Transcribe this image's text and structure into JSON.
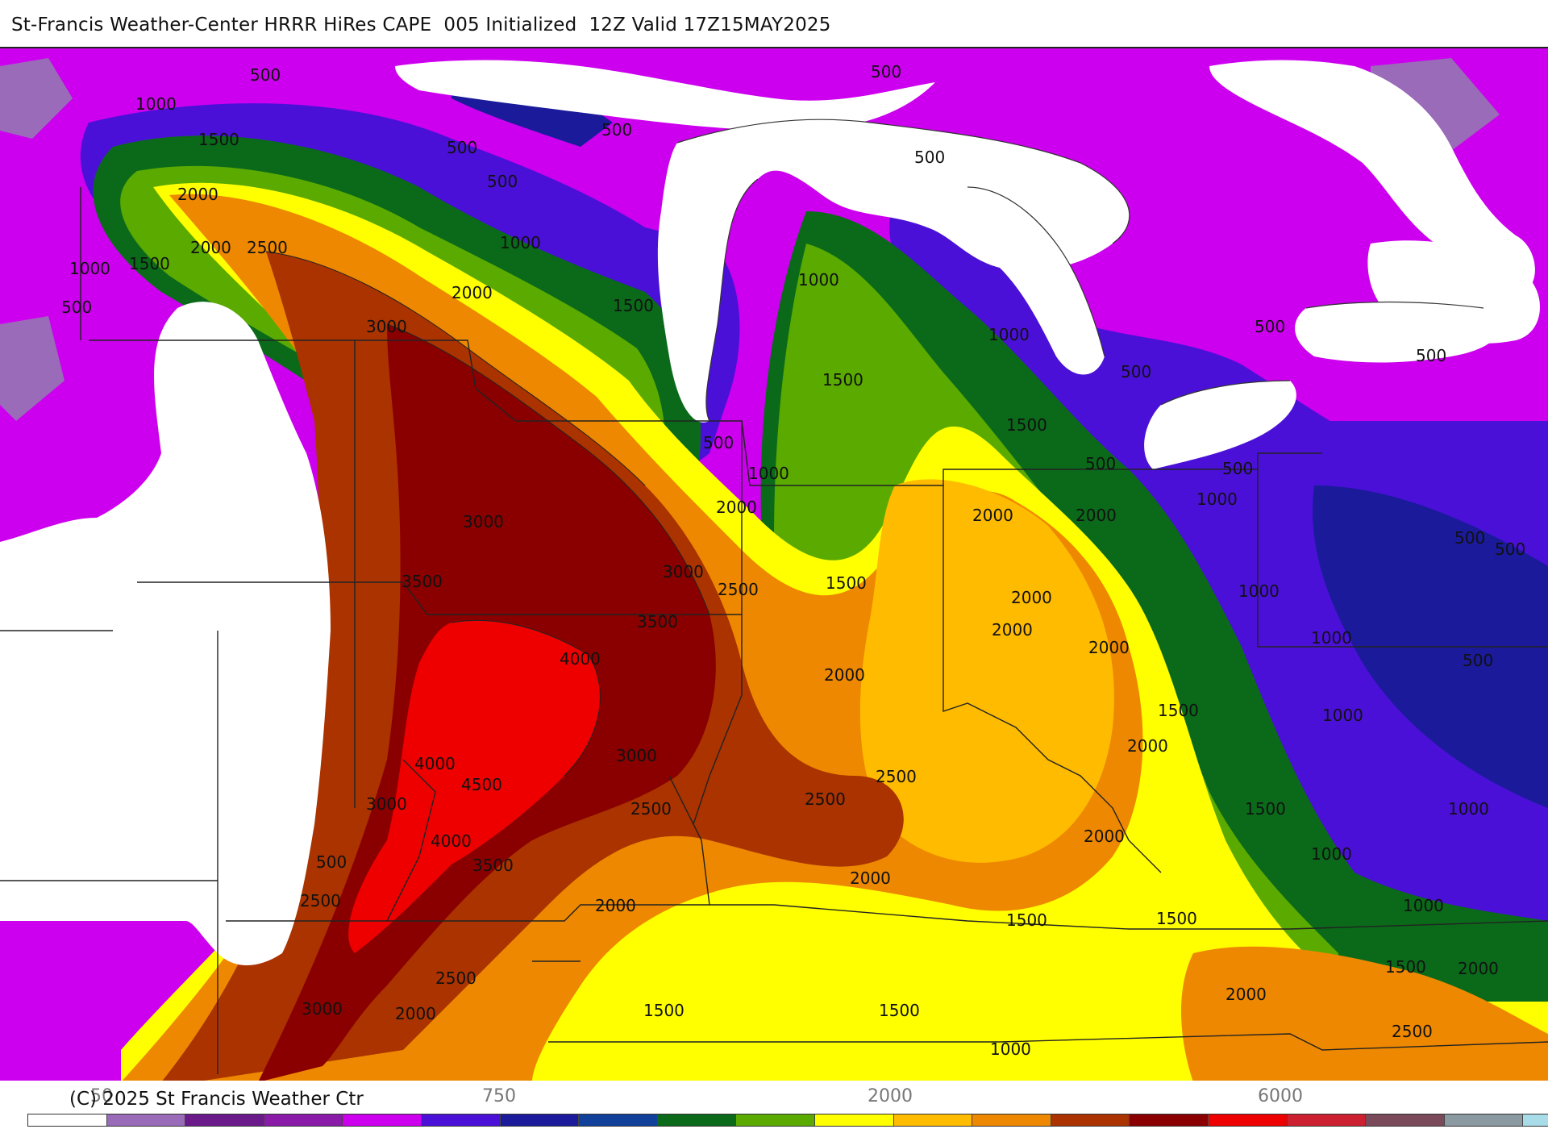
{
  "header": {
    "title": "St-Francis Weather-Center HRRR HiRes CAPE  005 Initialized  12Z Valid 17Z15MAY2025"
  },
  "footer": {
    "copyright": "(C) 2025 St Francis Weather Ctr"
  },
  "colorbar": {
    "tick_labels": [
      "50",
      "750",
      "2000",
      "6000"
    ],
    "colors": [
      "#ffffff",
      "#9a6bb8",
      "#6a1a8a",
      "#8a1aa8",
      "#cc00ee",
      "#4a10d8",
      "#1a1a9a",
      "#10409a",
      "#0a6a1a",
      "#5aaa00",
      "#ffff00",
      "#ffbb00",
      "#ee8800",
      "#aa3300",
      "#8a0000",
      "#ee0000",
      "#cc2030",
      "#7a4a5a",
      "#8a9aa0",
      "#a8dce8"
    ]
  },
  "colors": {
    "background": "#ffffff",
    "border": "#222222",
    "contour": "#222222"
  },
  "map": {
    "contour_labels": [
      "500",
      "1000",
      "1500",
      "2000",
      "2500",
      "3000",
      "3500",
      "4000",
      "4500"
    ]
  }
}
